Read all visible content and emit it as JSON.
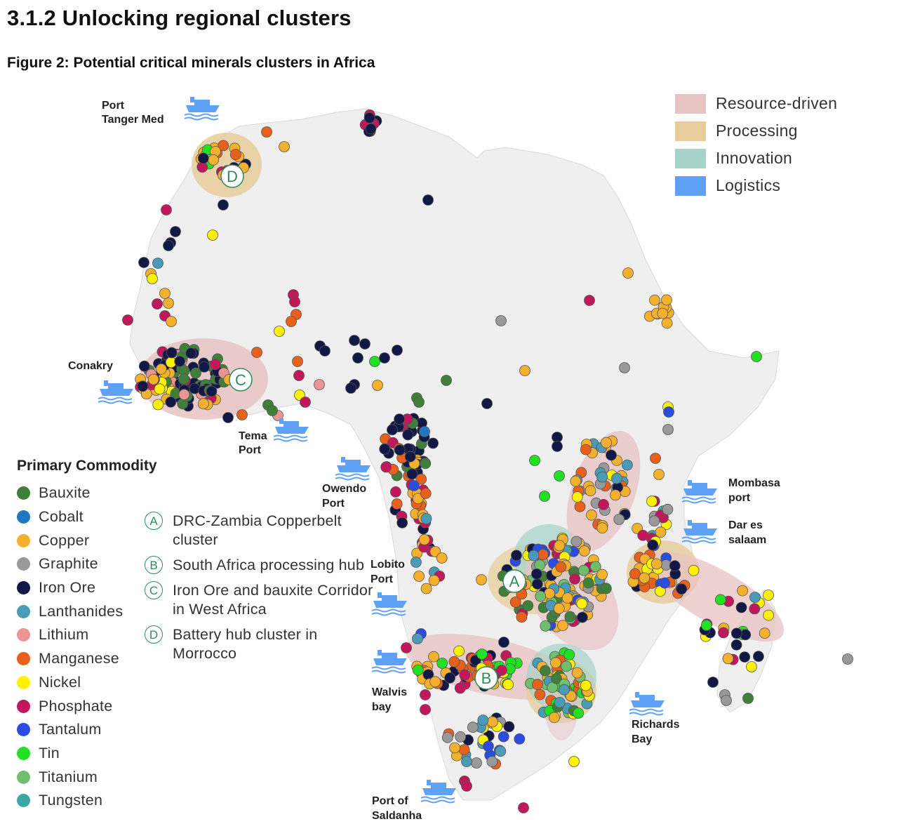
{
  "section_title": "3.1.2   Unlocking regional clusters",
  "figure_title": "Figure 2: Potential critical minerals clusters in Africa",
  "cluster_types": [
    {
      "label": "Resource-driven",
      "color": "#e8c3c3"
    },
    {
      "label": "Processing",
      "color": "#e8cd9a"
    },
    {
      "label": "Innovation",
      "color": "#a8d3cb"
    },
    {
      "label": "Logistics",
      "color": "#5ea1f7"
    }
  ],
  "commodity_legend": {
    "title": "Primary Commodity",
    "items": [
      {
        "label": "Bauxite",
        "color": "#3f7f3a"
      },
      {
        "label": "Cobalt",
        "color": "#1f78c4"
      },
      {
        "label": "Copper",
        "color": "#f5b12d"
      },
      {
        "label": "Graphite",
        "color": "#999999"
      },
      {
        "label": "Iron Ore",
        "color": "#111845"
      },
      {
        "label": "Lanthanides",
        "color": "#4a9bb8"
      },
      {
        "label": "Lithium",
        "color": "#ec9595"
      },
      {
        "label": "Manganese",
        "color": "#e8601c"
      },
      {
        "label": "Nickel",
        "color": "#fff200"
      },
      {
        "label": "Phosphate",
        "color": "#c2185b"
      },
      {
        "label": "Tantalum",
        "color": "#2b4ce0"
      },
      {
        "label": "Tin",
        "color": "#22e022"
      },
      {
        "label": "Titanium",
        "color": "#6fbf6f"
      },
      {
        "label": "Tungsten",
        "color": "#3aa7a3"
      }
    ]
  },
  "clusters": [
    {
      "letter": "A",
      "label": "DRC-Zambia Copperbelt cluster"
    },
    {
      "letter": "B",
      "label": "South Africa processing hub"
    },
    {
      "letter": "C",
      "label": "Iron Ore and bauxite Corridor in West Africa"
    },
    {
      "letter": "D",
      "label": "Battery hub cluster in Morrocco"
    }
  ],
  "ports": [
    {
      "line1": "Port",
      "line2": "Tanger Med"
    },
    {
      "line1": "Conakry",
      "line2": ""
    },
    {
      "line1": "Tema",
      "line2": "Port"
    },
    {
      "line1": "Owendo",
      "line2": "Port"
    },
    {
      "line1": "Lobito",
      "line2": "Port"
    },
    {
      "line1": "Walvis",
      "line2": "bay"
    },
    {
      "line1": "Port of",
      "line2": "Saldanha"
    },
    {
      "line1": "Richards",
      "line2": "Bay"
    },
    {
      "line1": "Mombasa",
      "line2": "port"
    },
    {
      "line1": "Dar es",
      "line2": "salaam"
    }
  ]
}
